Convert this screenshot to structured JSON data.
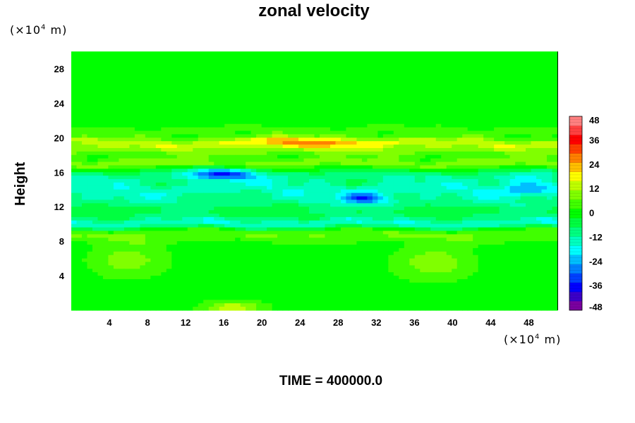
{
  "chart_data": {
    "type": "heatmap",
    "title": "zonal velocity",
    "xlabel": "",
    "ylabel": "Height",
    "x_unit": {
      "prefix": "(×10",
      "exp": "4",
      "suffix": " m)"
    },
    "y_unit": {
      "prefix": "(×10",
      "exp": "4",
      "suffix": " m)"
    },
    "xlim": [
      0,
      51
    ],
    "ylim": [
      0,
      30
    ],
    "x_ticks": [
      4,
      8,
      12,
      16,
      20,
      24,
      28,
      32,
      36,
      40,
      44,
      48
    ],
    "y_ticks": [
      4,
      8,
      12,
      16,
      20,
      24,
      28
    ],
    "colorbar": {
      "min": -48,
      "max": 48,
      "ticks": [
        48,
        36,
        24,
        12,
        0,
        -12,
        -24,
        -36,
        -48
      ],
      "colors": [
        "#7a00a0",
        "#3b00c8",
        "#0000ff",
        "#0040ff",
        "#0080ff",
        "#00bfff",
        "#00ffff",
        "#00ffbf",
        "#00ff80",
        "#00ff40",
        "#00ff00",
        "#40ff00",
        "#80ff00",
        "#bfff00",
        "#ffff00",
        "#ffbf00",
        "#ff8000",
        "#ff4000",
        "#ff0000",
        "#ff4040",
        "#ff8080"
      ]
    },
    "field": {
      "background": 0,
      "bands": [
        {
          "y": 20.8,
          "value": 5,
          "width": 0.5
        },
        {
          "y": 19.4,
          "value": 12,
          "width": 0.6
        },
        {
          "y": 18.5,
          "value": 8,
          "width": 0.7
        },
        {
          "y": 17.0,
          "value": 9,
          "width": 0.6
        },
        {
          "y": 15.5,
          "value": -10,
          "width": 0.8
        },
        {
          "y": 14.0,
          "value": -14,
          "width": 0.9
        },
        {
          "y": 12.5,
          "value": -10,
          "width": 0.8
        },
        {
          "y": 11.0,
          "value": -6,
          "width": 0.7
        },
        {
          "y": 10.0,
          "value": -15,
          "width": 0.6
        },
        {
          "y": 9.0,
          "value": 6,
          "width": 0.6
        },
        {
          "y": 8.3,
          "value": 4,
          "width": 0.5
        }
      ],
      "blobs": [
        {
          "x": 16,
          "y": 15.8,
          "value": -26,
          "rx": 3.5,
          "ry": 0.7
        },
        {
          "x": 31,
          "y": 13.0,
          "value": -24,
          "rx": 2.5,
          "ry": 0.6
        },
        {
          "x": 6,
          "y": 5.8,
          "value": 9,
          "rx": 4,
          "ry": 2
        },
        {
          "x": 38,
          "y": 5.5,
          "value": 10,
          "rx": 4,
          "ry": 2
        },
        {
          "x": 17,
          "y": 0.3,
          "value": 14,
          "rx": 3,
          "ry": 0.8
        },
        {
          "x": 48,
          "y": 14.5,
          "value": -12,
          "rx": 3,
          "ry": 1.2
        },
        {
          "x": 25,
          "y": 19.5,
          "value": 14,
          "rx": 8,
          "ry": 0.6
        }
      ]
    }
  }
}
